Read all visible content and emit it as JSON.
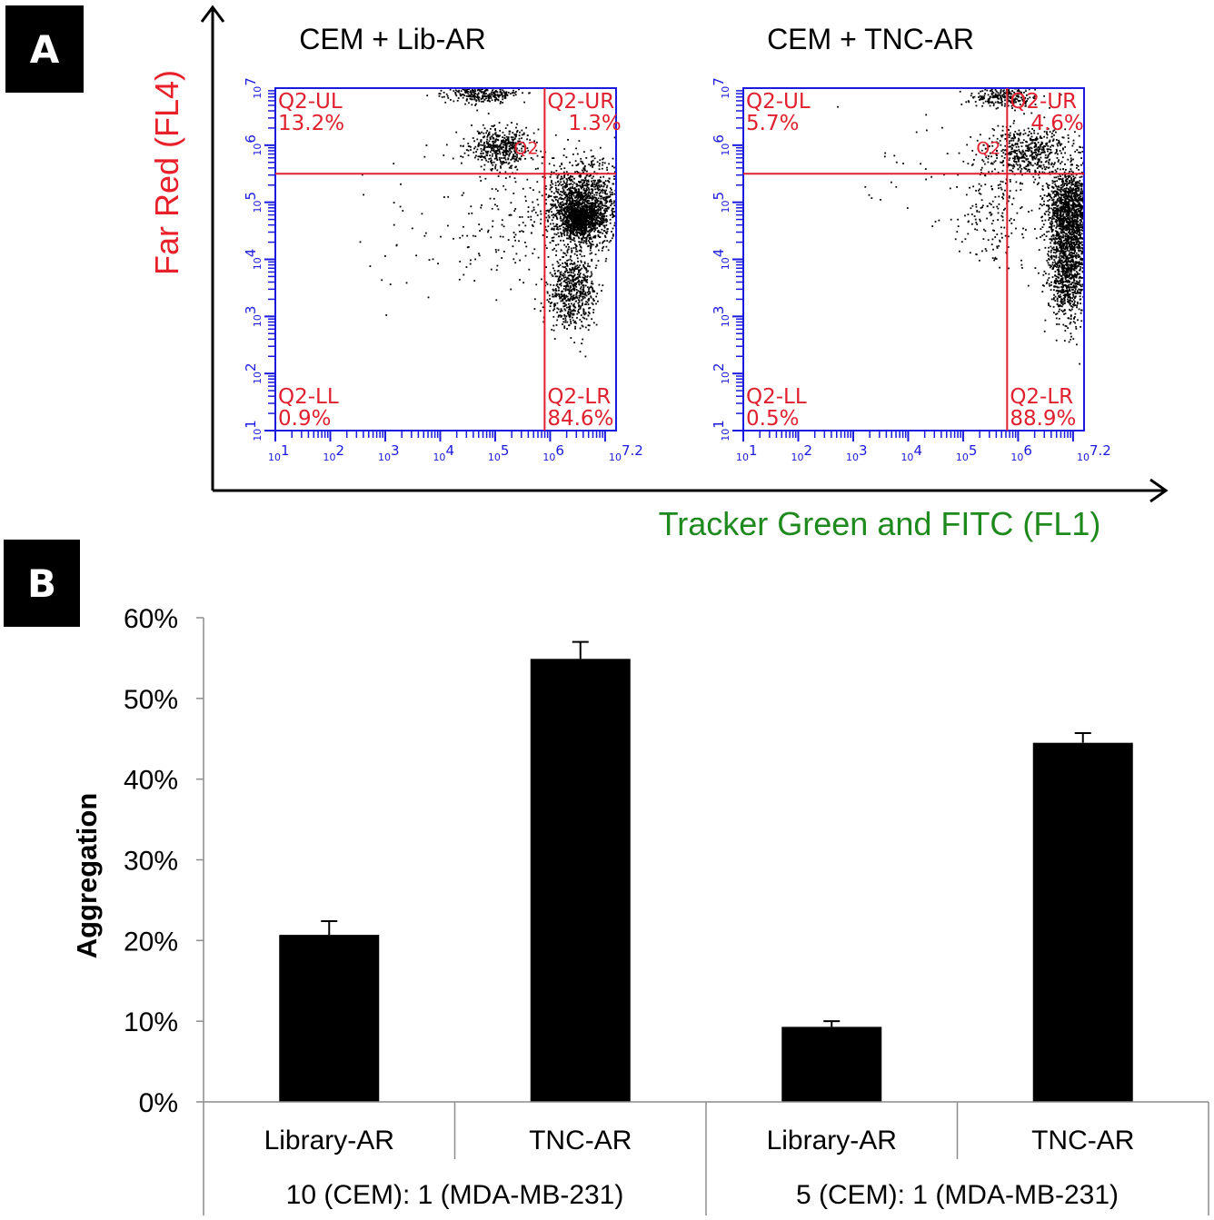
{
  "panels": {
    "a": "A",
    "b": "B"
  },
  "colors": {
    "plot_axis": "#1a1adf",
    "gate": "#e0202e",
    "ylabel_a": "#e8202a",
    "xlabel_a": "#1e8a1e",
    "bar": "#000000"
  },
  "chart_data": [
    {
      "type": "scatter",
      "panel": "A",
      "title": "CEM + Lib-AR",
      "xlabel": "Tracker Green and FITC (FL1)",
      "ylabel": "Far Red (FL4)",
      "x_log_range": [
        1,
        7.2
      ],
      "y_log_range": [
        1,
        7
      ],
      "x_tick_labels": [
        "10^1",
        "10^2",
        "10^3",
        "10^4",
        "10^5",
        "10^6",
        "10^7.2"
      ],
      "y_tick_labels": [
        "10^1",
        "10^2",
        "10^3",
        "10^4",
        "10^5",
        "10^6",
        "10^7"
      ],
      "gate_x_log": 5.9,
      "gate_y_log": 5.5,
      "gate_label": "Q2",
      "quadrants": [
        {
          "name": "Q2-UL",
          "value": "13.2%",
          "position": "top-left"
        },
        {
          "name": "Q2-UR",
          "value": "1.3%",
          "position": "top-right"
        },
        {
          "name": "Q2-LL",
          "value": "0.9%",
          "position": "bottom-left"
        },
        {
          "name": "Q2-LR",
          "value": "84.6%",
          "position": "bottom-right"
        }
      ],
      "clusters": [
        {
          "x_log": 6.6,
          "y_log": 4.95,
          "sx": 0.32,
          "sy": 0.35,
          "n": 1500
        },
        {
          "x_log": 6.55,
          "y_log": 4.7,
          "sx": 0.15,
          "sy": 0.15,
          "n": 650
        },
        {
          "x_log": 6.4,
          "y_log": 3.5,
          "sx": 0.22,
          "sy": 0.35,
          "n": 650
        },
        {
          "x_log": 5.1,
          "y_log": 5.95,
          "sx": 0.3,
          "sy": 0.18,
          "n": 450
        },
        {
          "x_log": 4.8,
          "y_log": 6.9,
          "sx": 0.35,
          "sy": 0.08,
          "n": 280
        },
        {
          "x_log": 5.3,
          "y_log": 4.7,
          "sx": 0.55,
          "sy": 0.55,
          "n": 150
        },
        {
          "x_log": 4.0,
          "y_log": 4.6,
          "sx": 0.8,
          "sy": 0.7,
          "n": 40
        }
      ]
    },
    {
      "type": "scatter",
      "panel": "A",
      "title": "CEM + TNC-AR",
      "xlabel": "Tracker Green and FITC (FL1)",
      "ylabel": "Far Red (FL4)",
      "x_log_range": [
        1,
        7.2
      ],
      "y_log_range": [
        1,
        7
      ],
      "x_tick_labels": [
        "10^1",
        "10^2",
        "10^3",
        "10^4",
        "10^5",
        "10^6",
        "10^7.2"
      ],
      "y_tick_labels": [
        "10^1",
        "10^2",
        "10^3",
        "10^4",
        "10^5",
        "10^6",
        "10^7"
      ],
      "gate_x_log": 5.8,
      "gate_y_log": 5.5,
      "gate_label": "Q2",
      "quadrants": [
        {
          "name": "Q2-UL",
          "value": "5.7%",
          "position": "top-left"
        },
        {
          "name": "Q2-UR",
          "value": "4.6%",
          "position": "top-right"
        },
        {
          "name": "Q2-LL",
          "value": "0.5%",
          "position": "bottom-left"
        },
        {
          "name": "Q2-LR",
          "value": "88.9%",
          "position": "bottom-right"
        }
      ],
      "clusters": [
        {
          "x_log": 6.95,
          "y_log": 4.85,
          "sx": 0.22,
          "sy": 0.4,
          "n": 1400
        },
        {
          "x_log": 6.9,
          "y_log": 3.8,
          "sx": 0.18,
          "sy": 0.45,
          "n": 900
        },
        {
          "x_log": 6.2,
          "y_log": 5.9,
          "sx": 0.35,
          "sy": 0.22,
          "n": 500
        },
        {
          "x_log": 5.8,
          "y_log": 6.85,
          "sx": 0.3,
          "sy": 0.1,
          "n": 250
        },
        {
          "x_log": 5.6,
          "y_log": 5.0,
          "sx": 0.3,
          "sy": 0.6,
          "n": 200
        },
        {
          "x_log": 4.5,
          "y_log": 5.5,
          "sx": 0.8,
          "sy": 0.6,
          "n": 40
        }
      ]
    },
    {
      "type": "bar",
      "panel": "B",
      "ylabel": "Aggregation",
      "ylim": [
        0,
        0.6
      ],
      "yticks": [
        0,
        0.1,
        0.2,
        0.3,
        0.4,
        0.5,
        0.6
      ],
      "ytick_labels": [
        "0%",
        "10%",
        "20%",
        "30%",
        "40%",
        "50%",
        "60%"
      ],
      "categories": [
        "Library-AR",
        "TNC-AR",
        "Library-AR",
        "TNC-AR"
      ],
      "groups": [
        "10 (CEM): 1 (MDA-MB-231)",
        "5 (CEM): 1 (MDA-MB-231)"
      ],
      "values": [
        0.207,
        0.549,
        0.093,
        0.445
      ],
      "errors": [
        0.017,
        0.021,
        0.007,
        0.012
      ]
    }
  ]
}
